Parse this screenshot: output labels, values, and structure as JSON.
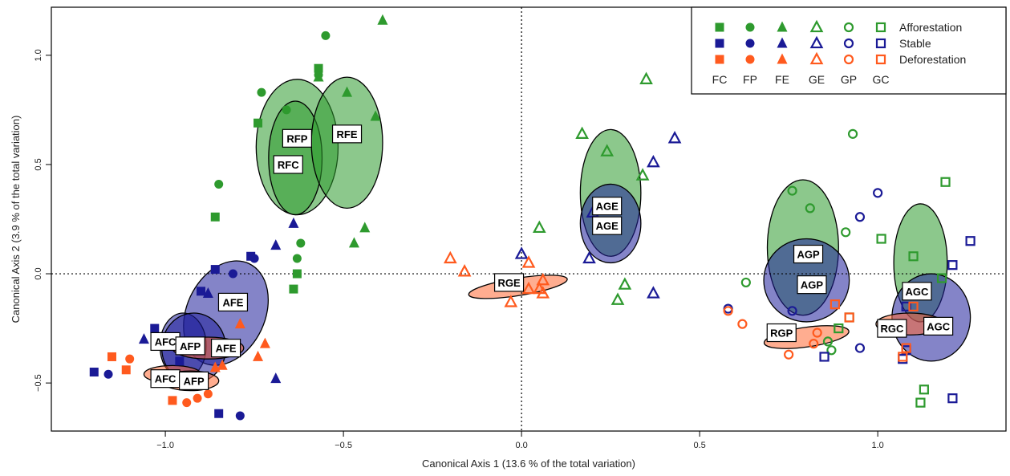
{
  "chart_data": {
    "type": "scatter",
    "title": "",
    "xlabel": "Canonical Axis 1 (13.6 % of the total variation)",
    "ylabel": "Canonical Axis 2 (3.9 % of the total variation)",
    "xlim": [
      -1.32,
      1.36
    ],
    "ylim": [
      -0.72,
      1.22
    ],
    "xticks": [
      {
        "value": -1.0,
        "label": "−1.0"
      },
      {
        "value": -0.5,
        "label": "−0.5"
      },
      {
        "value": 0.0,
        "label": "0.0"
      },
      {
        "value": 0.5,
        "label": "0.5"
      },
      {
        "value": 1.0,
        "label": "1.0"
      }
    ],
    "yticks": [
      {
        "value": -0.5,
        "label": "−0.5"
      },
      {
        "value": 0.0,
        "label": "0.0"
      },
      {
        "value": 0.5,
        "label": "0.5"
      },
      {
        "value": 1.0,
        "label": "1.0"
      }
    ],
    "reference_lines": {
      "x": 0,
      "y": 0,
      "style": "dotted"
    },
    "legend": {
      "position": "top-right",
      "columns": [
        "FC",
        "FP",
        "FE",
        "GE",
        "GP",
        "GC"
      ],
      "column_shapes": [
        "square-filled",
        "circle-filled",
        "triangle-filled",
        "triangle-open",
        "circle-open",
        "square-open"
      ],
      "rows": [
        {
          "label": "Afforestation",
          "color": "#2e9a2e"
        },
        {
          "label": "Stable",
          "color": "#1a1a96"
        },
        {
          "label": "Deforestation",
          "color": "#ff5a1e"
        }
      ]
    },
    "colors": {
      "afforestation": "#2e9a2e",
      "stable": "#1a1a96",
      "deforestation": "#ff5a1e"
    },
    "ellipses": [
      {
        "label": "RFP",
        "group": "afforestation",
        "cx": -0.63,
        "cy": 0.58,
        "rx": 0.115,
        "ry": 0.31,
        "rot": 0,
        "lx": -0.63,
        "ly": 0.62
      },
      {
        "label": "RFC",
        "group": "afforestation",
        "cx": -0.635,
        "cy": 0.53,
        "rx": 0.075,
        "ry": 0.26,
        "rot": 0,
        "lx": -0.655,
        "ly": 0.5
      },
      {
        "label": "RFE",
        "group": "afforestation",
        "cx": -0.49,
        "cy": 0.6,
        "rx": 0.1,
        "ry": 0.3,
        "rot": 0,
        "lx": -0.49,
        "ly": 0.64
      },
      {
        "label": "AGE",
        "group": "afforestation",
        "cx": 0.25,
        "cy": 0.37,
        "rx": 0.085,
        "ry": 0.29,
        "rot": 0,
        "lx": 0.24,
        "ly": 0.31
      },
      {
        "label": "AGE",
        "group": "stable",
        "cx": 0.25,
        "cy": 0.23,
        "rx": 0.085,
        "ry": 0.18,
        "rot": 0,
        "lx": 0.24,
        "ly": 0.22
      },
      {
        "label": "RGE",
        "group": "deforestation",
        "cx": -0.01,
        "cy": -0.06,
        "rx": 0.14,
        "ry": 0.04,
        "rot": -9,
        "lx": -0.035,
        "ly": -0.04
      },
      {
        "label": "AGP",
        "group": "afforestation",
        "cx": 0.79,
        "cy": 0.12,
        "rx": 0.1,
        "ry": 0.31,
        "rot": 0,
        "lx": 0.805,
        "ly": 0.09
      },
      {
        "label": "AGP",
        "group": "stable",
        "cx": 0.8,
        "cy": -0.03,
        "rx": 0.12,
        "ry": 0.19,
        "rot": 0,
        "lx": 0.815,
        "ly": -0.05
      },
      {
        "label": "RGP",
        "group": "deforestation",
        "cx": 0.8,
        "cy": -0.29,
        "rx": 0.12,
        "ry": 0.045,
        "rot": -8,
        "lx": 0.73,
        "ly": -0.27
      },
      {
        "label": "AGC",
        "group": "afforestation",
        "cx": 1.12,
        "cy": 0.05,
        "rx": 0.075,
        "ry": 0.27,
        "rot": 0,
        "lx": 1.11,
        "ly": -0.08
      },
      {
        "label": "AGC",
        "group": "stable",
        "cx": 1.15,
        "cy": -0.2,
        "rx": 0.11,
        "ry": 0.2,
        "rot": 0,
        "lx": 1.17,
        "ly": -0.24
      },
      {
        "label": "RGC",
        "group": "deforestation",
        "cx": 1.09,
        "cy": -0.23,
        "rx": 0.095,
        "ry": 0.05,
        "rot": 0,
        "lx": 1.04,
        "ly": -0.25
      },
      {
        "label": "AFE",
        "group": "stable",
        "cx": -0.83,
        "cy": -0.18,
        "rx": 0.11,
        "ry": 0.25,
        "rot": 25,
        "lx": -0.81,
        "ly": -0.13
      },
      {
        "label": "AFC",
        "group": "stable",
        "cx": -0.95,
        "cy": -0.33,
        "rx": 0.065,
        "ry": 0.15,
        "rot": 0,
        "lx": -1.0,
        "ly": -0.31
      },
      {
        "label": "AFP",
        "group": "stable",
        "cx": -0.92,
        "cy": -0.34,
        "rx": 0.09,
        "ry": 0.16,
        "rot": 0,
        "lx": -0.93,
        "ly": -0.33
      },
      {
        "label": "AFE",
        "group": "deforestation",
        "cx": -0.88,
        "cy": -0.34,
        "rx": 0.1,
        "ry": 0.05,
        "rot": 0,
        "lx": -0.83,
        "ly": -0.34
      },
      {
        "label": "AFC",
        "group": "deforestation",
        "cx": -0.98,
        "cy": -0.46,
        "rx": 0.08,
        "ry": 0.04,
        "rot": 0,
        "lx": -1.0,
        "ly": -0.48
      },
      {
        "label": "AFP",
        "group": "deforestation",
        "cx": -0.93,
        "cy": -0.49,
        "rx": 0.08,
        "ry": 0.045,
        "rot": 0,
        "lx": -0.92,
        "ly": -0.49
      }
    ],
    "series": [
      {
        "name": "FC",
        "group": "afforestation",
        "shape": "square-filled",
        "points": [
          [
            -0.86,
            0.26
          ],
          [
            -0.74,
            0.69
          ],
          [
            -0.57,
            0.94
          ],
          [
            -0.63,
            0.0
          ],
          [
            -0.64,
            -0.07
          ]
        ]
      },
      {
        "name": "FP",
        "group": "afforestation",
        "shape": "circle-filled",
        "points": [
          [
            -0.85,
            0.41
          ],
          [
            -0.73,
            0.83
          ],
          [
            -0.66,
            0.75
          ],
          [
            -0.55,
            1.09
          ],
          [
            -0.57,
            0.91
          ],
          [
            -0.62,
            0.14
          ],
          [
            -0.63,
            0.07
          ]
        ]
      },
      {
        "name": "FE",
        "group": "afforestation",
        "shape": "triangle-filled",
        "points": [
          [
            -0.39,
            1.16
          ],
          [
            -0.49,
            0.83
          ],
          [
            -0.41,
            0.72
          ],
          [
            -0.57,
            0.9
          ],
          [
            -0.44,
            0.21
          ],
          [
            -0.47,
            0.14
          ]
        ]
      },
      {
        "name": "GE",
        "group": "afforestation",
        "shape": "triangle-open",
        "points": [
          [
            0.35,
            0.89
          ],
          [
            0.17,
            0.64
          ],
          [
            0.24,
            0.56
          ],
          [
            0.34,
            0.45
          ],
          [
            0.05,
            0.21
          ],
          [
            0.29,
            -0.05
          ],
          [
            0.27,
            -0.12
          ]
        ]
      },
      {
        "name": "GP",
        "group": "afforestation",
        "shape": "circle-open",
        "points": [
          [
            0.93,
            0.64
          ],
          [
            0.76,
            0.38
          ],
          [
            0.81,
            0.3
          ],
          [
            0.91,
            0.19
          ],
          [
            0.63,
            -0.04
          ],
          [
            0.86,
            -0.31
          ],
          [
            0.87,
            -0.35
          ]
        ]
      },
      {
        "name": "GC",
        "group": "afforestation",
        "shape": "square-open",
        "points": [
          [
            1.19,
            0.42
          ],
          [
            1.01,
            0.16
          ],
          [
            1.1,
            0.08
          ],
          [
            1.18,
            -0.02
          ],
          [
            0.89,
            -0.25
          ],
          [
            0.92,
            -0.2
          ],
          [
            1.13,
            -0.53
          ],
          [
            1.12,
            -0.59
          ]
        ]
      },
      {
        "name": "FC",
        "group": "stable",
        "shape": "square-filled",
        "points": [
          [
            -0.76,
            0.08
          ],
          [
            -0.86,
            0.02
          ],
          [
            -0.9,
            -0.08
          ],
          [
            -0.96,
            -0.4
          ],
          [
            -1.03,
            -0.25
          ],
          [
            -1.2,
            -0.45
          ],
          [
            -0.85,
            -0.64
          ]
        ]
      },
      {
        "name": "FP",
        "group": "stable",
        "shape": "circle-filled",
        "points": [
          [
            -0.75,
            0.07
          ],
          [
            -0.81,
            0.0
          ],
          [
            -1.16,
            -0.46
          ],
          [
            -0.79,
            -0.65
          ]
        ]
      },
      {
        "name": "FE",
        "group": "stable",
        "shape": "triangle-filled",
        "points": [
          [
            -0.69,
            0.13
          ],
          [
            -0.64,
            0.23
          ],
          [
            -0.88,
            -0.09
          ],
          [
            -0.69,
            -0.48
          ],
          [
            -1.06,
            -0.3
          ]
        ]
      },
      {
        "name": "GE",
        "group": "stable",
        "shape": "triangle-open",
        "points": [
          [
            0.43,
            0.62
          ],
          [
            0.37,
            0.51
          ],
          [
            0.2,
            0.28
          ],
          [
            0.19,
            0.07
          ],
          [
            0.37,
            -0.09
          ],
          [
            0.0,
            0.09
          ]
        ]
      },
      {
        "name": "GP",
        "group": "stable",
        "shape": "circle-open",
        "points": [
          [
            1.0,
            0.37
          ],
          [
            0.95,
            0.26
          ],
          [
            0.58,
            -0.16
          ],
          [
            0.76,
            -0.17
          ],
          [
            0.95,
            -0.34
          ]
        ]
      },
      {
        "name": "GC",
        "group": "stable",
        "shape": "square-open",
        "points": [
          [
            1.26,
            0.15
          ],
          [
            1.21,
            0.04
          ],
          [
            1.21,
            -0.57
          ],
          [
            1.08,
            -0.15
          ],
          [
            1.06,
            -0.23
          ],
          [
            1.08,
            -0.35
          ],
          [
            0.85,
            -0.38
          ],
          [
            1.07,
            -0.39
          ]
        ]
      },
      {
        "name": "FC",
        "group": "deforestation",
        "shape": "square-filled",
        "points": [
          [
            -1.15,
            -0.38
          ],
          [
            -1.11,
            -0.44
          ],
          [
            -0.98,
            -0.58
          ]
        ]
      },
      {
        "name": "FP",
        "group": "deforestation",
        "shape": "circle-filled",
        "points": [
          [
            -1.1,
            -0.39
          ],
          [
            -0.94,
            -0.59
          ],
          [
            -0.91,
            -0.57
          ],
          [
            -0.88,
            -0.55
          ]
        ]
      },
      {
        "name": "FE",
        "group": "deforestation",
        "shape": "triangle-filled",
        "points": [
          [
            -0.72,
            -0.32
          ],
          [
            -0.74,
            -0.38
          ],
          [
            -0.84,
            -0.42
          ],
          [
            -0.86,
            -0.43
          ],
          [
            -0.79,
            -0.23
          ]
        ]
      },
      {
        "name": "GE",
        "group": "deforestation",
        "shape": "triangle-open",
        "points": [
          [
            -0.2,
            0.07
          ],
          [
            -0.16,
            0.01
          ],
          [
            0.06,
            -0.03
          ],
          [
            0.05,
            -0.07
          ],
          [
            0.06,
            -0.09
          ],
          [
            0.02,
            -0.07
          ],
          [
            -0.03,
            -0.13
          ],
          [
            0.02,
            0.05
          ]
        ]
      },
      {
        "name": "GP",
        "group": "deforestation",
        "shape": "circle-open",
        "points": [
          [
            0.58,
            -0.17
          ],
          [
            0.62,
            -0.23
          ],
          [
            0.75,
            -0.37
          ],
          [
            0.83,
            -0.27
          ],
          [
            0.82,
            -0.32
          ]
        ]
      },
      {
        "name": "GC",
        "group": "deforestation",
        "shape": "square-open",
        "points": [
          [
            0.92,
            -0.2
          ],
          [
            0.88,
            -0.14
          ],
          [
            1.1,
            -0.15
          ],
          [
            1.08,
            -0.34
          ],
          [
            1.07,
            -0.38
          ]
        ]
      }
    ]
  }
}
